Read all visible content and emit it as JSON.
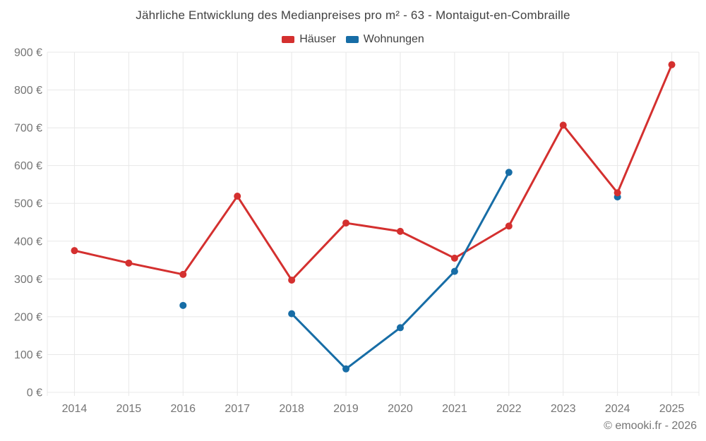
{
  "header": {
    "title": "Jährliche Entwicklung des Medianpreises pro m² - 63 - Montaigut-en-Combraille"
  },
  "footer": {
    "copyright": "© emooki.fr - 2026"
  },
  "colors": {
    "haeuser": "#d4302f",
    "wohnungen": "#176da6",
    "grid": "#e8e8e8",
    "axis_text": "#757575",
    "title_text": "#424242"
  },
  "chart_data": {
    "type": "line",
    "title": "Jährliche Entwicklung des Medianpreises pro m² - 63 - Montaigut-en-Combraille",
    "categories": [
      "2014",
      "2015",
      "2016",
      "2017",
      "2018",
      "2019",
      "2020",
      "2021",
      "2022",
      "2023",
      "2024",
      "2025"
    ],
    "series": [
      {
        "name": "Häuser",
        "color": "#d4302f",
        "values": [
          375,
          342,
          312,
          519,
          297,
          448,
          426,
          355,
          440,
          707,
          528,
          867
        ]
      },
      {
        "name": "Wohnungen",
        "color": "#176da6",
        "values": [
          null,
          null,
          230,
          null,
          208,
          62,
          171,
          320,
          582,
          null,
          517,
          null
        ]
      }
    ],
    "xlabel": "",
    "ylabel": "",
    "ylim": [
      0,
      900
    ],
    "y_tick_step": 100,
    "y_ticks": [
      "0 €",
      "100 €",
      "200 €",
      "300 €",
      "400 €",
      "500 €",
      "600 €",
      "700 €",
      "800 €",
      "900 €"
    ],
    "grid": true,
    "legend_position": "top"
  }
}
